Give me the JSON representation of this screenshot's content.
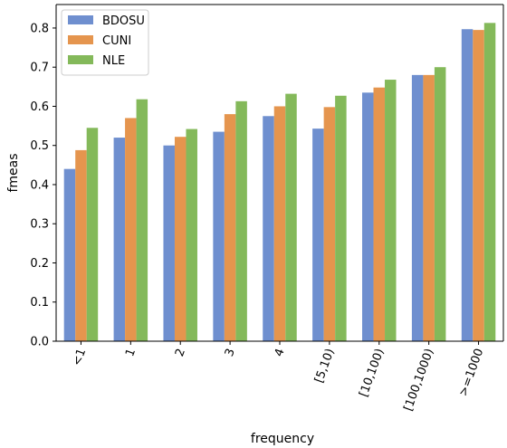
{
  "chart_data": {
    "type": "bar",
    "xlabel": "frequency",
    "ylabel": "fmeas",
    "ylim": [
      0.0,
      0.86
    ],
    "yticks": [
      "0.0",
      "0.1",
      "0.2",
      "0.3",
      "0.4",
      "0.5",
      "0.6",
      "0.7",
      "0.8"
    ],
    "ytick_values": [
      0.0,
      0.1,
      0.2,
      0.3,
      0.4,
      0.5,
      0.6,
      0.7,
      0.8
    ],
    "categories": [
      "<1",
      "1",
      "2",
      "3",
      "4",
      "[5,10)",
      "[10,100)",
      "[100,1000)",
      ">=1000"
    ],
    "series": [
      {
        "name": "BDOSU",
        "color": "#6f8fcf",
        "values": [
          0.44,
          0.52,
          0.5,
          0.535,
          0.575,
          0.543,
          0.635,
          0.68,
          0.797
        ]
      },
      {
        "name": "CUNI",
        "color": "#e5954e",
        "values": [
          0.488,
          0.57,
          0.522,
          0.58,
          0.6,
          0.598,
          0.648,
          0.68,
          0.795
        ]
      },
      {
        "name": "NLE",
        "color": "#84b95a",
        "values": [
          0.545,
          0.618,
          0.542,
          0.613,
          0.632,
          0.627,
          0.668,
          0.7,
          0.813
        ]
      }
    ],
    "legend": "top-left",
    "grid": false
  }
}
